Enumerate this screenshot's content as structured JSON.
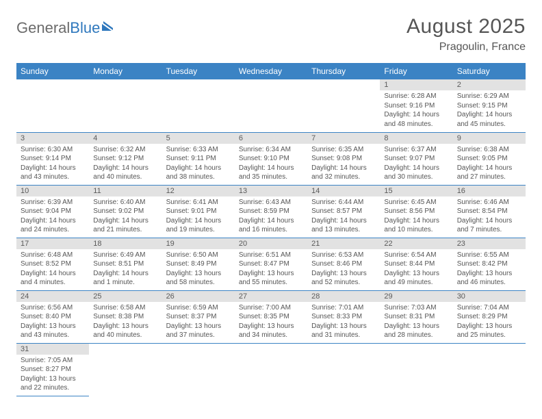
{
  "logo": {
    "text1": "General",
    "text2": "Blue"
  },
  "title": "August 2025",
  "location": "Pragoulin, France",
  "colors": {
    "header_bg": "#3b83c4",
    "header_text": "#ffffff",
    "daynum_bg": "#e2e2e2",
    "text": "#555555",
    "rule": "#3b83c4"
  },
  "weekdays": [
    "Sunday",
    "Monday",
    "Tuesday",
    "Wednesday",
    "Thursday",
    "Friday",
    "Saturday"
  ],
  "weeks": [
    [
      null,
      null,
      null,
      null,
      null,
      {
        "n": "1",
        "sr": "Sunrise: 6:28 AM",
        "ss": "Sunset: 9:16 PM",
        "dl": "Daylight: 14 hours and 48 minutes."
      },
      {
        "n": "2",
        "sr": "Sunrise: 6:29 AM",
        "ss": "Sunset: 9:15 PM",
        "dl": "Daylight: 14 hours and 45 minutes."
      }
    ],
    [
      {
        "n": "3",
        "sr": "Sunrise: 6:30 AM",
        "ss": "Sunset: 9:14 PM",
        "dl": "Daylight: 14 hours and 43 minutes."
      },
      {
        "n": "4",
        "sr": "Sunrise: 6:32 AM",
        "ss": "Sunset: 9:12 PM",
        "dl": "Daylight: 14 hours and 40 minutes."
      },
      {
        "n": "5",
        "sr": "Sunrise: 6:33 AM",
        "ss": "Sunset: 9:11 PM",
        "dl": "Daylight: 14 hours and 38 minutes."
      },
      {
        "n": "6",
        "sr": "Sunrise: 6:34 AM",
        "ss": "Sunset: 9:10 PM",
        "dl": "Daylight: 14 hours and 35 minutes."
      },
      {
        "n": "7",
        "sr": "Sunrise: 6:35 AM",
        "ss": "Sunset: 9:08 PM",
        "dl": "Daylight: 14 hours and 32 minutes."
      },
      {
        "n": "8",
        "sr": "Sunrise: 6:37 AM",
        "ss": "Sunset: 9:07 PM",
        "dl": "Daylight: 14 hours and 30 minutes."
      },
      {
        "n": "9",
        "sr": "Sunrise: 6:38 AM",
        "ss": "Sunset: 9:05 PM",
        "dl": "Daylight: 14 hours and 27 minutes."
      }
    ],
    [
      {
        "n": "10",
        "sr": "Sunrise: 6:39 AM",
        "ss": "Sunset: 9:04 PM",
        "dl": "Daylight: 14 hours and 24 minutes."
      },
      {
        "n": "11",
        "sr": "Sunrise: 6:40 AM",
        "ss": "Sunset: 9:02 PM",
        "dl": "Daylight: 14 hours and 21 minutes."
      },
      {
        "n": "12",
        "sr": "Sunrise: 6:41 AM",
        "ss": "Sunset: 9:01 PM",
        "dl": "Daylight: 14 hours and 19 minutes."
      },
      {
        "n": "13",
        "sr": "Sunrise: 6:43 AM",
        "ss": "Sunset: 8:59 PM",
        "dl": "Daylight: 14 hours and 16 minutes."
      },
      {
        "n": "14",
        "sr": "Sunrise: 6:44 AM",
        "ss": "Sunset: 8:57 PM",
        "dl": "Daylight: 14 hours and 13 minutes."
      },
      {
        "n": "15",
        "sr": "Sunrise: 6:45 AM",
        "ss": "Sunset: 8:56 PM",
        "dl": "Daylight: 14 hours and 10 minutes."
      },
      {
        "n": "16",
        "sr": "Sunrise: 6:46 AM",
        "ss": "Sunset: 8:54 PM",
        "dl": "Daylight: 14 hours and 7 minutes."
      }
    ],
    [
      {
        "n": "17",
        "sr": "Sunrise: 6:48 AM",
        "ss": "Sunset: 8:52 PM",
        "dl": "Daylight: 14 hours and 4 minutes."
      },
      {
        "n": "18",
        "sr": "Sunrise: 6:49 AM",
        "ss": "Sunset: 8:51 PM",
        "dl": "Daylight: 14 hours and 1 minute."
      },
      {
        "n": "19",
        "sr": "Sunrise: 6:50 AM",
        "ss": "Sunset: 8:49 PM",
        "dl": "Daylight: 13 hours and 58 minutes."
      },
      {
        "n": "20",
        "sr": "Sunrise: 6:51 AM",
        "ss": "Sunset: 8:47 PM",
        "dl": "Daylight: 13 hours and 55 minutes."
      },
      {
        "n": "21",
        "sr": "Sunrise: 6:53 AM",
        "ss": "Sunset: 8:46 PM",
        "dl": "Daylight: 13 hours and 52 minutes."
      },
      {
        "n": "22",
        "sr": "Sunrise: 6:54 AM",
        "ss": "Sunset: 8:44 PM",
        "dl": "Daylight: 13 hours and 49 minutes."
      },
      {
        "n": "23",
        "sr": "Sunrise: 6:55 AM",
        "ss": "Sunset: 8:42 PM",
        "dl": "Daylight: 13 hours and 46 minutes."
      }
    ],
    [
      {
        "n": "24",
        "sr": "Sunrise: 6:56 AM",
        "ss": "Sunset: 8:40 PM",
        "dl": "Daylight: 13 hours and 43 minutes."
      },
      {
        "n": "25",
        "sr": "Sunrise: 6:58 AM",
        "ss": "Sunset: 8:38 PM",
        "dl": "Daylight: 13 hours and 40 minutes."
      },
      {
        "n": "26",
        "sr": "Sunrise: 6:59 AM",
        "ss": "Sunset: 8:37 PM",
        "dl": "Daylight: 13 hours and 37 minutes."
      },
      {
        "n": "27",
        "sr": "Sunrise: 7:00 AM",
        "ss": "Sunset: 8:35 PM",
        "dl": "Daylight: 13 hours and 34 minutes."
      },
      {
        "n": "28",
        "sr": "Sunrise: 7:01 AM",
        "ss": "Sunset: 8:33 PM",
        "dl": "Daylight: 13 hours and 31 minutes."
      },
      {
        "n": "29",
        "sr": "Sunrise: 7:03 AM",
        "ss": "Sunset: 8:31 PM",
        "dl": "Daylight: 13 hours and 28 minutes."
      },
      {
        "n": "30",
        "sr": "Sunrise: 7:04 AM",
        "ss": "Sunset: 8:29 PM",
        "dl": "Daylight: 13 hours and 25 minutes."
      }
    ],
    [
      {
        "n": "31",
        "sr": "Sunrise: 7:05 AM",
        "ss": "Sunset: 8:27 PM",
        "dl": "Daylight: 13 hours and 22 minutes."
      },
      null,
      null,
      null,
      null,
      null,
      null
    ]
  ]
}
